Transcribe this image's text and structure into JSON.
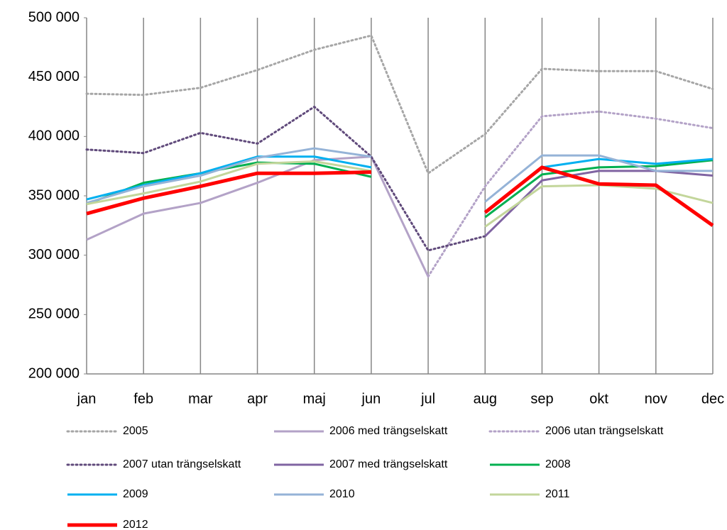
{
  "chart_data": {
    "type": "line",
    "categories": [
      "jan",
      "feb",
      "mar",
      "apr",
      "maj",
      "jun",
      "jul",
      "aug",
      "sep",
      "okt",
      "nov",
      "dec"
    ],
    "ylim": [
      200000,
      500000
    ],
    "yticks": [
      {
        "value": 200000,
        "label": "200 000"
      },
      {
        "value": 250000,
        "label": "250 000"
      },
      {
        "value": 300000,
        "label": "300 000"
      },
      {
        "value": 350000,
        "label": "350 000"
      },
      {
        "value": 400000,
        "label": "400 000"
      },
      {
        "value": 450000,
        "label": "450 000"
      },
      {
        "value": 500000,
        "label": "500 000"
      }
    ],
    "grid": "vertical",
    "series": [
      {
        "name": "2005",
        "color": "#a6a6a6",
        "style": "dotted",
        "values": [
          436000,
          435000,
          441000,
          456000,
          473000,
          485000,
          369000,
          402000,
          457000,
          455000,
          455000,
          440000
        ]
      },
      {
        "name": "2006 med trängselskatt",
        "color": "#b3a2c7",
        "style": "solid",
        "values": [
          313000,
          335000,
          344000,
          361000,
          380000,
          383000,
          282000,
          null,
          null,
          null,
          null,
          null
        ]
      },
      {
        "name": "2006 utan trängselskatt",
        "color": "#b3a2c7",
        "style": "dotted",
        "values": [
          null,
          null,
          null,
          null,
          null,
          null,
          282000,
          358000,
          417000,
          421000,
          415000,
          407000
        ]
      },
      {
        "name": "2007 utan trängselskatt",
        "color": "#604a7b",
        "style": "dotted",
        "values": [
          389000,
          386000,
          403000,
          394000,
          425000,
          383000,
          304000,
          316000,
          null,
          null,
          null,
          null
        ]
      },
      {
        "name": "2007 med trängselskatt",
        "color": "#8064a2",
        "style": "solid",
        "values": [
          null,
          null,
          null,
          null,
          null,
          null,
          null,
          316000,
          363000,
          371000,
          371000,
          367000
        ]
      },
      {
        "name": "2008",
        "color": "#00b050",
        "style": "solid",
        "values": [
          343000,
          361000,
          369000,
          378000,
          377000,
          366000,
          null,
          332000,
          368000,
          374000,
          375000,
          380000
        ]
      },
      {
        "name": "2009",
        "color": "#00b0f0",
        "style": "solid",
        "values": [
          347000,
          359000,
          369000,
          383000,
          383000,
          374000,
          null,
          null,
          374000,
          381000,
          377000,
          381000
        ]
      },
      {
        "name": "2010",
        "color": "#95b3d7",
        "style": "solid",
        "values": [
          344000,
          358000,
          367000,
          382000,
          390000,
          383000,
          null,
          345000,
          384000,
          384000,
          371000,
          371000
        ]
      },
      {
        "name": "2011",
        "color": "#c3d69b",
        "style": "solid",
        "values": [
          343000,
          352000,
          362000,
          377000,
          379000,
          371000,
          null,
          324000,
          358000,
          359000,
          356000,
          344000
        ]
      },
      {
        "name": "2012",
        "color": "#ff0000",
        "style": "bold",
        "values": [
          335000,
          348000,
          358000,
          369000,
          369000,
          370000,
          null,
          336000,
          374000,
          360000,
          359000,
          325000
        ]
      }
    ],
    "legend": "bottom"
  }
}
